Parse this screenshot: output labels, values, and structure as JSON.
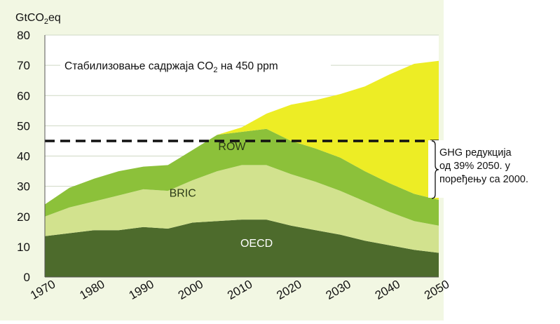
{
  "chart_data": {
    "type": "area",
    "stacked": true,
    "ylabel": {
      "base": "GtCO",
      "sub": "2",
      "tail": "eq"
    },
    "annotation": {
      "before": "Стабилизовање садржаја CO",
      "sub": "2",
      "after": " на 450 ppm"
    },
    "x": [
      1970,
      1975,
      1980,
      1985,
      1990,
      1995,
      2000,
      2005,
      2010,
      2015,
      2020,
      2025,
      2030,
      2035,
      2040,
      2045,
      2050
    ],
    "xticks": [
      1970,
      1980,
      1990,
      2000,
      2010,
      2020,
      2030,
      2040,
      2050
    ],
    "ylim": [
      0,
      80
    ],
    "yticks": [
      0,
      10,
      20,
      30,
      40,
      50,
      60,
      70,
      80
    ],
    "series": [
      {
        "name": "OECD",
        "color": "#4d6b2c",
        "values": [
          13.5,
          14.5,
          15.5,
          15.5,
          16.5,
          16,
          18,
          18.5,
          19,
          19,
          17,
          15.5,
          14,
          12,
          10.5,
          9,
          8
        ]
      },
      {
        "name": "BRIC",
        "color": "#d2e28e",
        "values": [
          6.5,
          8.5,
          9.5,
          11.5,
          12.5,
          12.5,
          14,
          16.5,
          18,
          18,
          17,
          16,
          14.5,
          13,
          11,
          9.5,
          9
        ]
      },
      {
        "name": "ROW",
        "color": "#8cc13a",
        "values": [
          4,
          6.5,
          7.5,
          8,
          7.5,
          8.5,
          10,
          12,
          11,
          12,
          11,
          11,
          11,
          10,
          9.5,
          9,
          8.5
        ]
      },
      {
        "name": "",
        "color": "#eded25",
        "values": [
          0,
          0,
          0,
          0,
          0,
          0,
          0,
          0,
          1.5,
          5,
          12,
          16,
          21,
          28,
          36,
          43,
          46
        ]
      }
    ],
    "reference_line": {
      "y": 45,
      "style": "dashed",
      "color": "#111111"
    },
    "plot_background": "#f2f7e3",
    "side_note_lines": [
      "GHG редукција",
      "од 39% 2050. у",
      "поређењу са 2000."
    ]
  }
}
